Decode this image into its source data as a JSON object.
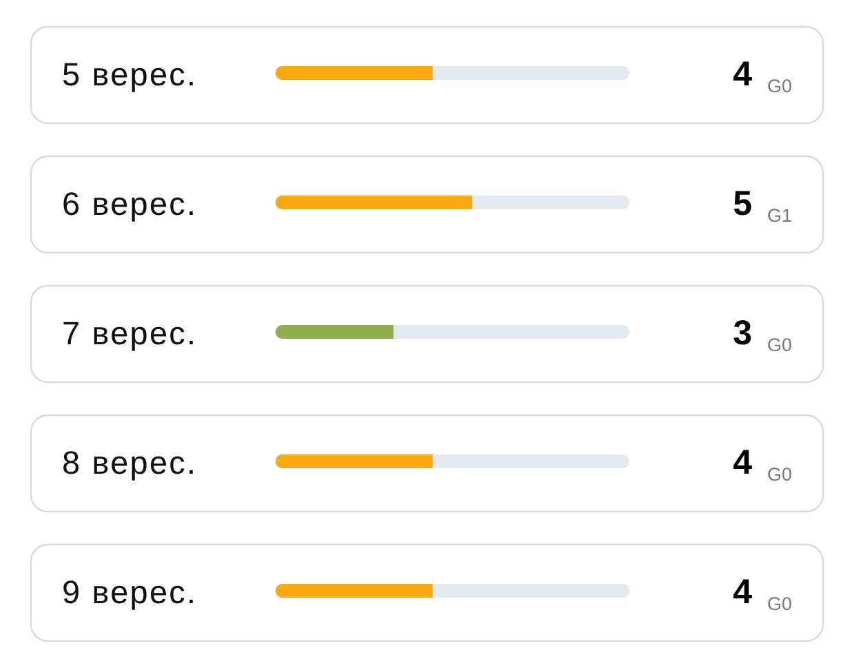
{
  "chart_data": {
    "type": "bar",
    "orientation": "horizontal",
    "categories": [
      "5 верес.",
      "6 верес.",
      "7 верес.",
      "8 верес.",
      "9 верес."
    ],
    "values": [
      4,
      5,
      3,
      4,
      4
    ],
    "colors": [
      "#f9a80f",
      "#f9a80f",
      "#8fae4c",
      "#f9a80f",
      "#f9a80f"
    ],
    "value_labels": [
      "4 $_{G0}$",
      "5 $_{G1}$",
      "3 $_{G0}$",
      "4 $_{G0}$",
      "4 $_{G0}$"
    ],
    "xlim": [
      0,
      9
    ],
    "tick_labels": "y"
  }
}
